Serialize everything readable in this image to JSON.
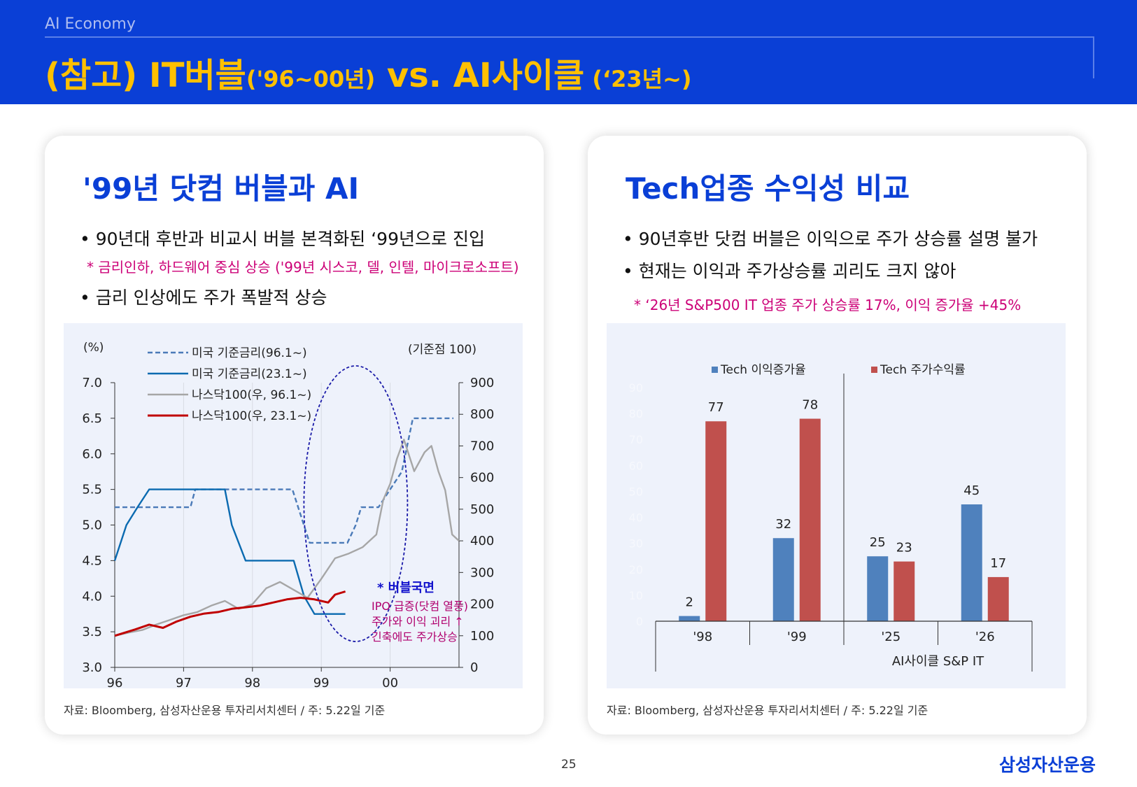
{
  "header": {
    "section_label": "AI Economy",
    "title_part1": "(참고) IT버블",
    "title_part2": "('96~00년)",
    "title_part3": " vs. AI사이클",
    "title_part4": " (‘23년~)"
  },
  "left_panel": {
    "title": "'99년 닷컴 버블과 AI",
    "bullet1": "• 90년대 후반과 비교시 버블 본격화된 ‘99년으로 진입",
    "note": "* 금리인하, 하드웨어 중심 상승 ('99년 시스코, 델, 인텔, 마이크로소프트)",
    "bullet2": "• 금리 인상에도 주가 폭발적 상승",
    "source": "자료: Bloomberg, 삼성자산운용 투자리서치센터 / 주: 5.22일 기준"
  },
  "right_panel": {
    "title": "Tech업종 수익성 비교",
    "bullet1": "• 90년후반 닷컴 버블은 이익으로 주가 상승률 설명 불가",
    "bullet2": "• 현재는 이익과 주가상승률 괴리도 크지 않아",
    "note": "* ‘26년 S&P500 IT 업종 주가 상승률 17%, 이익 증가율 +45%",
    "source": "자료: Bloomberg, 삼성자산운용 투자리서치센터 / 주: 5.22일 기준"
  },
  "page_number": "25",
  "logo_text": "삼성자산운용",
  "colors": {
    "brand_blue": "#0a3fd6",
    "title_yellow": "#ffc000",
    "note_magenta": "#cc0077",
    "bar_blue": "#4f81bd",
    "bar_red": "#c0504d"
  },
  "chart_data": [
    {
      "type": "line",
      "left_axis_unit": "(%)",
      "right_axis_unit": "(기준점 100)",
      "x_ticks": [
        "96",
        "97",
        "98",
        "99",
        "00"
      ],
      "x_range": [
        96,
        101
      ],
      "ylim_left": [
        3.0,
        7.0
      ],
      "yticks_left": [
        "3.0",
        "3.5",
        "4.0",
        "4.5",
        "5.0",
        "5.5",
        "6.0",
        "6.5",
        "7.0"
      ],
      "ylim_right": [
        0,
        900
      ],
      "yticks_right": [
        "0",
        "100",
        "200",
        "300",
        "400",
        "500",
        "600",
        "700",
        "800",
        "900"
      ],
      "series": [
        {
          "name": "미국 기준금리(96.1~)",
          "axis": "left",
          "style": "dashed",
          "color": "#4a7ab8",
          "x": [
            96.0,
            97.1,
            97.17,
            98.58,
            98.83,
            99.38,
            99.5,
            99.58,
            99.83,
            100.0,
            100.17,
            100.33,
            100.92
          ],
          "y": [
            5.25,
            5.25,
            5.5,
            5.5,
            4.75,
            4.75,
            5.0,
            5.25,
            5.25,
            5.5,
            5.75,
            6.5,
            6.5
          ]
        },
        {
          "name": "미국 기준금리(23.1~)",
          "axis": "left",
          "style": "solid",
          "color": "#0a6ab0",
          "x": [
            96.0,
            96.17,
            96.33,
            96.5,
            97.6,
            97.7,
            97.9,
            98.6,
            98.75,
            98.9,
            99.35
          ],
          "y": [
            4.5,
            5.0,
            5.25,
            5.5,
            5.5,
            5.0,
            4.5,
            4.5,
            4.0,
            3.75,
            3.75
          ]
        },
        {
          "name": "나스닥100(우, 96.1~)",
          "axis": "right",
          "style": "solid",
          "color": "#a6a6a6",
          "x": [
            96.0,
            96.2,
            96.4,
            96.6,
            96.8,
            97.0,
            97.2,
            97.4,
            97.6,
            97.8,
            98.0,
            98.2,
            98.4,
            98.6,
            98.8,
            99.0,
            99.2,
            99.4,
            99.6,
            99.8,
            99.9,
            100.0,
            100.1,
            100.2,
            100.35,
            100.5,
            100.6,
            100.7,
            100.8,
            100.9,
            101.0
          ],
          "y": [
            100,
            110,
            118,
            135,
            150,
            165,
            175,
            195,
            210,
            185,
            200,
            250,
            270,
            245,
            220,
            280,
            345,
            360,
            380,
            420,
            530,
            580,
            660,
            720,
            620,
            680,
            700,
            620,
            560,
            420,
            400
          ]
        },
        {
          "name": "나스닥100(우, 23.1~)",
          "axis": "right",
          "style": "solid",
          "color": "#c00000",
          "x": [
            96.0,
            96.3,
            96.5,
            96.7,
            96.9,
            97.1,
            97.3,
            97.5,
            97.7,
            97.9,
            98.1,
            98.3,
            98.5,
            98.7,
            98.9,
            99.1,
            99.2,
            99.35
          ],
          "y": [
            100,
            120,
            135,
            125,
            145,
            160,
            170,
            175,
            185,
            190,
            195,
            205,
            215,
            220,
            215,
            205,
            230,
            240
          ]
        }
      ],
      "annotation_title": "* 버블국면",
      "annotation_lines": [
        "IPO 급증(닷컴 열풍)",
        "주가와 이익 괴리 ↑",
        "긴축에도 주가상승"
      ]
    },
    {
      "type": "bar",
      "categories": [
        "'98",
        "'99",
        "'25",
        "'26"
      ],
      "group_label": "AI사이클 S&P IT",
      "ylim": [
        0,
        90
      ],
      "yticks": [
        "0",
        "10",
        "20",
        "30",
        "40",
        "50",
        "60",
        "70",
        "80",
        "90"
      ],
      "series": [
        {
          "name": "Tech 이익증가율",
          "color": "#4f81bd",
          "values": [
            2,
            32,
            25,
            45
          ]
        },
        {
          "name": "Tech 주가수익률",
          "color": "#c0504d",
          "values": [
            77,
            78,
            23,
            17
          ]
        }
      ]
    }
  ]
}
